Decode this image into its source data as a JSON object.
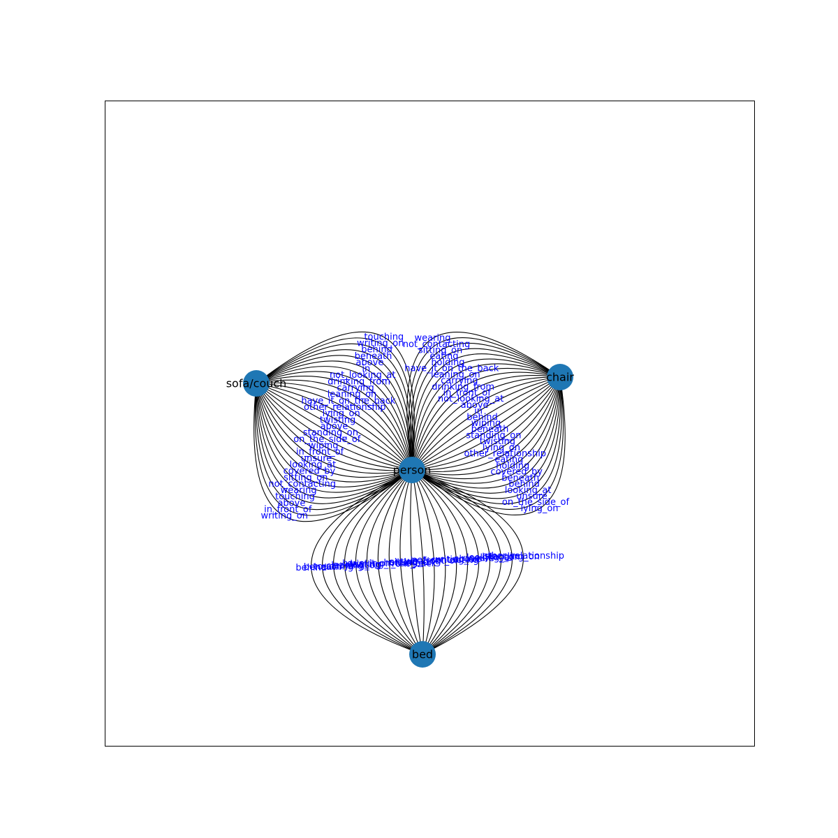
{
  "nodes": [
    {
      "id": "person",
      "label": "person"
    },
    {
      "id": "sofa",
      "label": "sofa/couch"
    },
    {
      "id": "chair",
      "label": "chair"
    },
    {
      "id": "bed",
      "label": "bed"
    }
  ],
  "edges": [
    {
      "source": "person",
      "target": "sofa",
      "labels": [
        "writing_on",
        "in_front_of",
        "above",
        "touching",
        "wearing",
        "not_contacting",
        "sitting_on",
        "covered_by",
        "looking_at",
        "unsure",
        "in_front_of",
        "wiping",
        "on_the_side_of",
        "standing_on",
        "above",
        "twisting",
        "lying_on",
        "other_relationship",
        "have_it_on_the_back",
        "leaning_on",
        "carrying",
        "drinking_from",
        "not_looking_at",
        "in",
        "above",
        "beneath",
        "behind",
        "writing_on",
        "touching"
      ]
    },
    {
      "source": "person",
      "target": "chair",
      "labels": [
        "wearing",
        "not_contacting",
        "sitting_on",
        "eating",
        "holding",
        "have_it_on_the_back",
        "leaning_on",
        "carrying",
        "drinking_from",
        "in_front_of",
        "not_looking_at",
        "above",
        "in",
        "behind",
        "wiping",
        "beneath",
        "standing_on",
        "twisting",
        "lying_on",
        "other_relationship",
        "eating",
        "holding",
        "covered_by",
        "beneath",
        "behind",
        "looking_at",
        "unsure",
        "on_the_side_of",
        "lying_on"
      ]
    },
    {
      "source": "person",
      "target": "bed",
      "labels": [
        "other_relationship",
        "standing_on",
        "lying_on",
        "looking_at",
        "unsure",
        "above",
        "writing_on",
        "not_contacting",
        "in_front_of",
        "wearing",
        "sitting_on",
        "holding",
        "have_it_on_the_back",
        "drinking_from",
        "eating",
        "leaning_on",
        "carrying",
        "touching",
        "beneath",
        "behind"
      ]
    }
  ]
}
